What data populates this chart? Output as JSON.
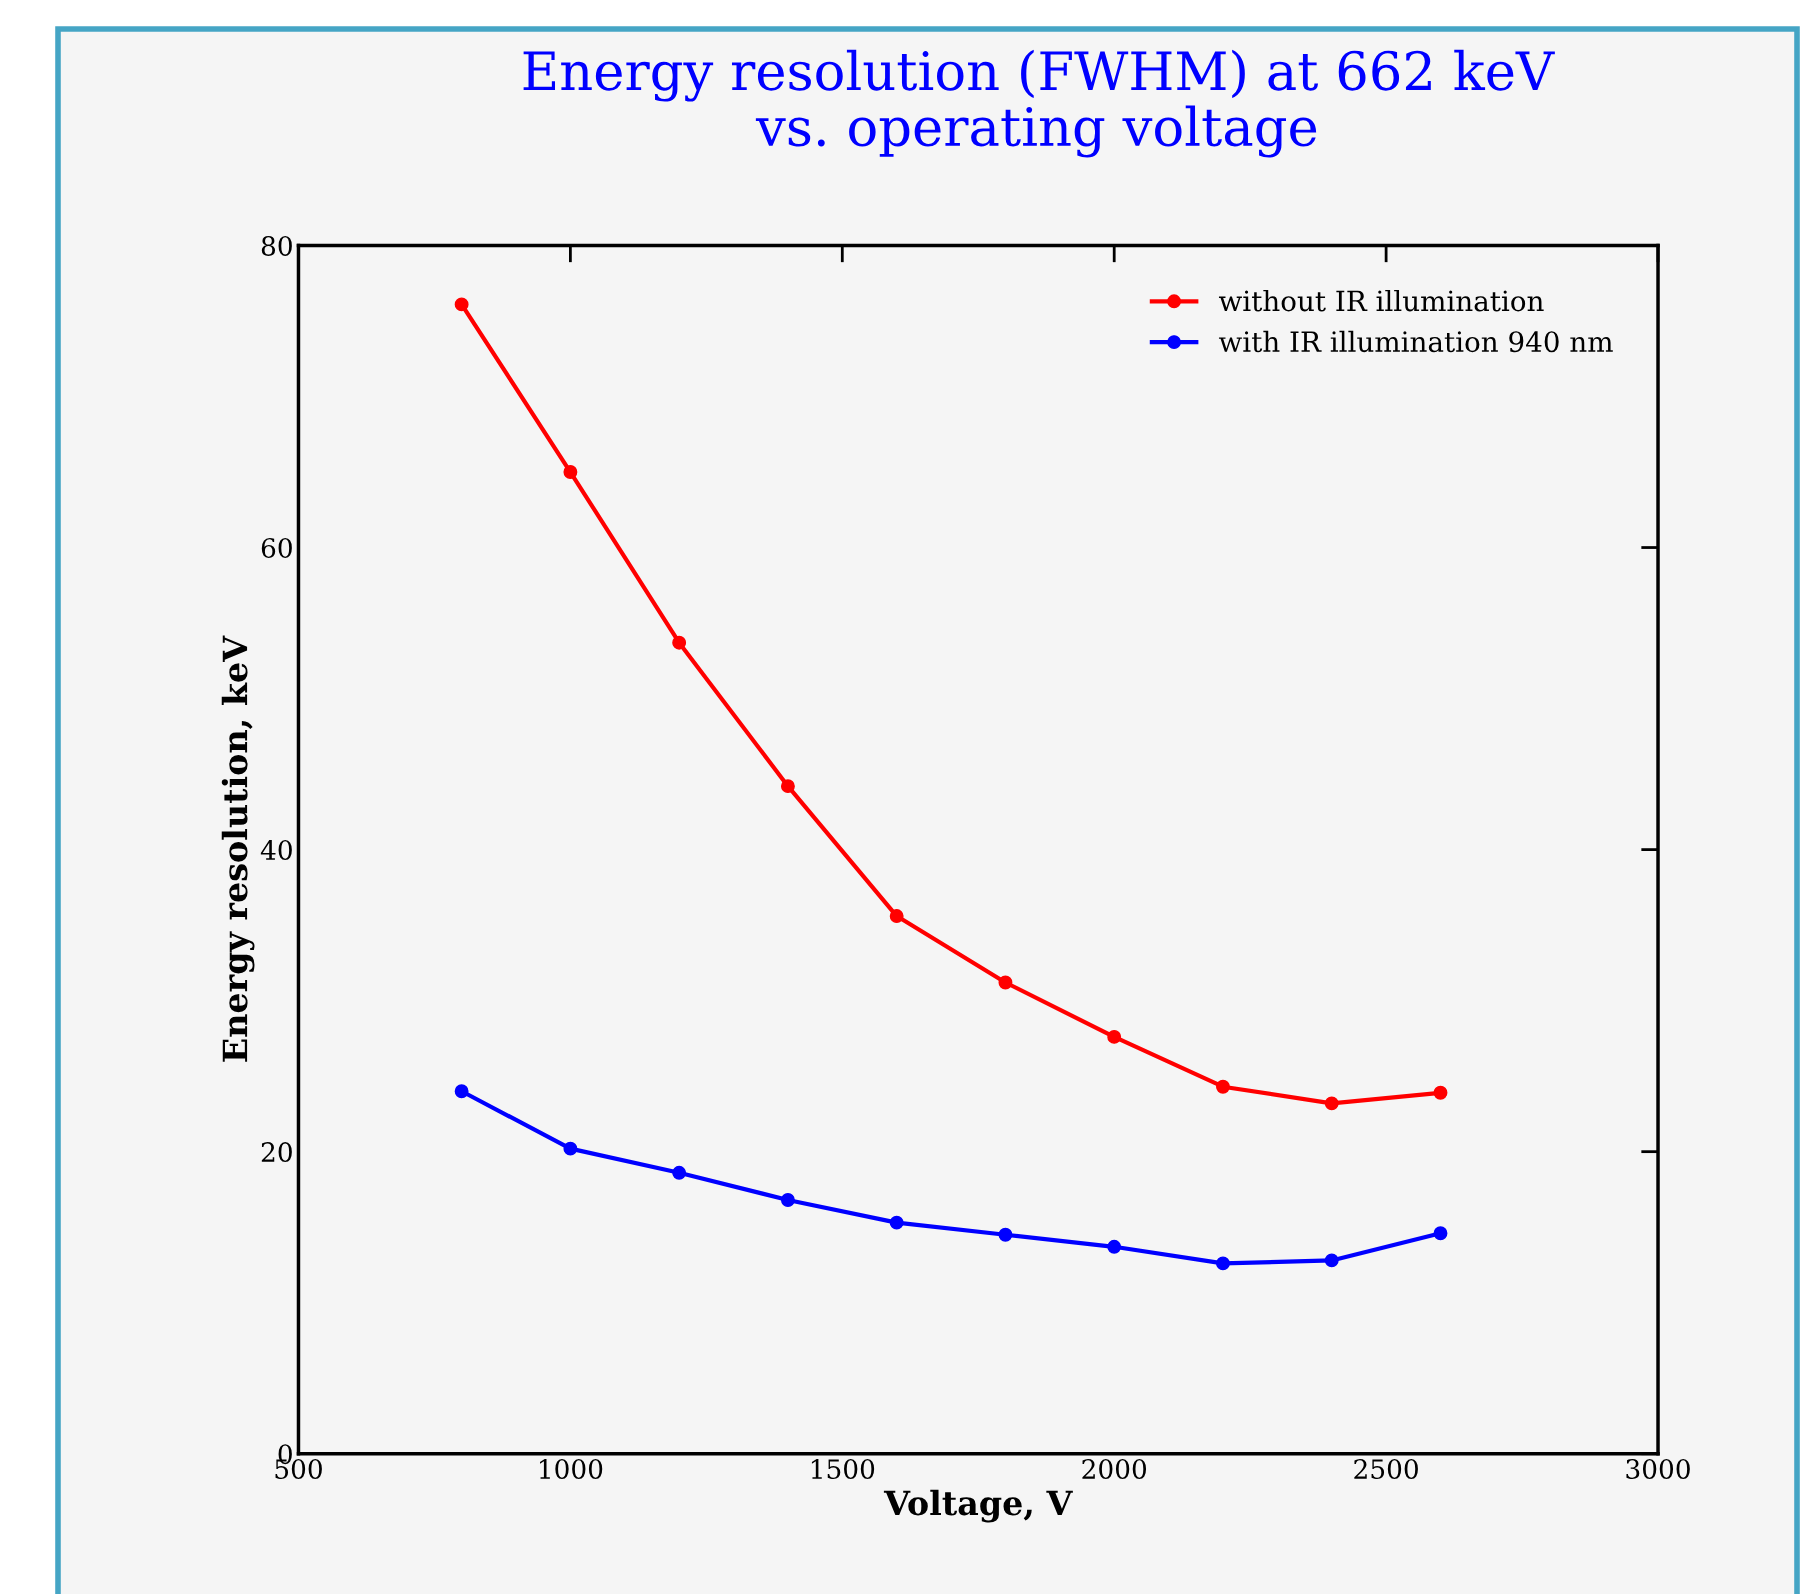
{
  "chart_data": {
    "type": "line",
    "title": "Energy resolution (FWHM) at 662 keV\nvs. operating voltage",
    "xlabel": "Voltage, V",
    "ylabel": "Energy resolution, keV",
    "x": [
      800,
      1000,
      1200,
      1400,
      1600,
      1800,
      2000,
      2200,
      2400,
      2600
    ],
    "series": [
      {
        "name": "without IR illumination",
        "color": "#ff0000",
        "values": [
          76.1,
          65.0,
          53.7,
          44.2,
          35.6,
          31.2,
          27.6,
          24.3,
          23.2,
          23.9
        ]
      },
      {
        "name": "with IR illumination 940 nm",
        "color": "#0000ff",
        "values": [
          24.0,
          20.2,
          18.6,
          16.8,
          15.3,
          14.5,
          13.7,
          12.6,
          12.8,
          14.6
        ]
      }
    ],
    "xlim": [
      500,
      3000
    ],
    "xticks": [
      500,
      1000,
      1500,
      2000,
      2500,
      3000
    ],
    "ylim": [
      0,
      80
    ],
    "yticks": [
      0,
      20,
      40,
      60,
      80
    ],
    "grid": false,
    "legend": "top right",
    "marker": "circle",
    "line_style": "solid"
  }
}
